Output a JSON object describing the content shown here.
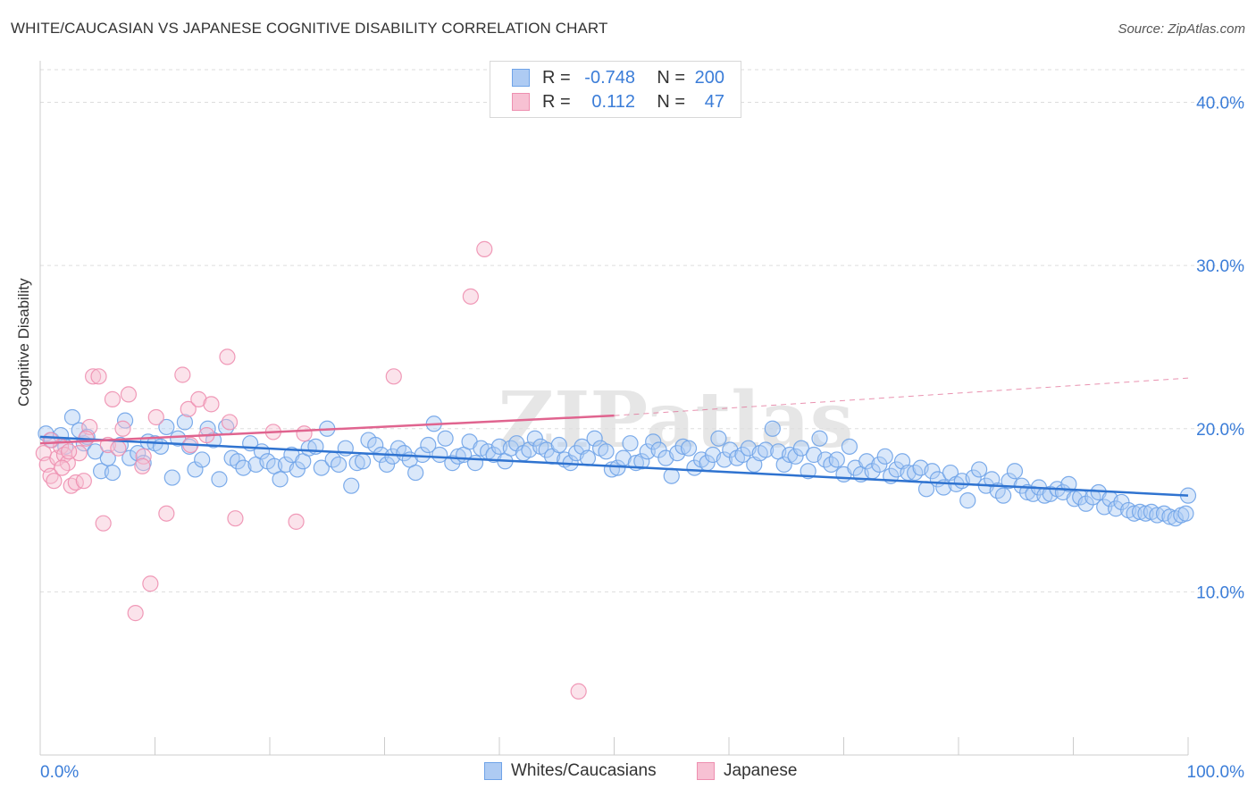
{
  "title": "WHITE/CAUCASIAN VS JAPANESE COGNITIVE DISABILITY CORRELATION CHART",
  "source": "Source: ZipAtlas.com",
  "watermark": "ZIPatlas",
  "colors": {
    "blue": "#6fa3e8",
    "blue_fill": "#aecbf3",
    "blue_line": "#2f73d0",
    "pink": "#ee8fb0",
    "pink_fill": "#f7c1d3",
    "pink_line": "#e0648f",
    "tick_text": "#3b7dd8",
    "grid": "#dddddd"
  },
  "legend": {
    "rows": [
      {
        "r_label": "R =",
        "r_value": "-0.748",
        "n_label": "N =",
        "n_value": "200"
      },
      {
        "r_label": "R =",
        "r_value": "0.112",
        "n_label": "N =",
        "n_value": "47"
      }
    ]
  },
  "bottom_legend": [
    {
      "label": "Whites/Caucasians"
    },
    {
      "label": "Japanese"
    }
  ],
  "chart_data": {
    "type": "scatter",
    "title": "WHITE/CAUCASIAN VS JAPANESE COGNITIVE DISABILITY CORRELATION CHART",
    "xlabel": "",
    "ylabel": "Cognitive Disability",
    "xlim": [
      0,
      100
    ],
    "ylim": [
      0,
      42
    ],
    "x_tick_labels": [
      "0.0%",
      "100.0%"
    ],
    "y_ticks": [
      10,
      20,
      30,
      40
    ],
    "y_tick_labels": [
      "10.0%",
      "20.0%",
      "30.0%",
      "40.0%"
    ],
    "grid": "horizontal dashed",
    "legend_position": "top-center",
    "series": [
      {
        "name": "Whites/Caucasians",
        "color": "#6fa3e8",
        "trend": {
          "x": [
            0,
            100
          ],
          "y": [
            19.5,
            15.9
          ]
        },
        "points": [
          [
            0.5,
            19.7
          ],
          [
            1.0,
            19.3
          ],
          [
            1.8,
            19.6
          ],
          [
            2.2,
            18.9
          ],
          [
            2.8,
            20.7
          ],
          [
            3.4,
            19.9
          ],
          [
            3.8,
            19.1
          ],
          [
            4.1,
            19.5
          ],
          [
            4.8,
            18.6
          ],
          [
            5.3,
            17.4
          ],
          [
            5.9,
            18.2
          ],
          [
            6.3,
            17.3
          ],
          [
            7.0,
            19.0
          ],
          [
            7.4,
            20.5
          ],
          [
            7.8,
            18.2
          ],
          [
            8.5,
            18.5
          ],
          [
            9.0,
            17.9
          ],
          [
            9.4,
            19.2
          ],
          [
            10.0,
            19.1
          ],
          [
            10.5,
            18.9
          ],
          [
            11.0,
            20.1
          ],
          [
            11.5,
            17.0
          ],
          [
            12.0,
            19.4
          ],
          [
            12.6,
            20.4
          ],
          [
            13.0,
            18.9
          ],
          [
            13.5,
            17.5
          ],
          [
            14.1,
            18.1
          ],
          [
            14.6,
            20.0
          ],
          [
            15.1,
            19.3
          ],
          [
            15.6,
            16.9
          ],
          [
            16.2,
            20.1
          ],
          [
            16.7,
            18.2
          ],
          [
            17.2,
            18.0
          ],
          [
            17.7,
            17.6
          ],
          [
            18.3,
            19.1
          ],
          [
            18.8,
            17.8
          ],
          [
            19.3,
            18.6
          ],
          [
            19.8,
            18.0
          ],
          [
            20.4,
            17.7
          ],
          [
            20.9,
            16.9
          ],
          [
            21.4,
            17.8
          ],
          [
            21.9,
            18.4
          ],
          [
            22.4,
            17.5
          ],
          [
            22.9,
            18.0
          ],
          [
            23.4,
            18.8
          ],
          [
            24.0,
            18.9
          ],
          [
            24.5,
            17.6
          ],
          [
            25.0,
            20.0
          ],
          [
            25.5,
            18.1
          ],
          [
            26.0,
            17.8
          ],
          [
            26.6,
            18.8
          ],
          [
            27.1,
            16.5
          ],
          [
            27.6,
            17.9
          ],
          [
            28.1,
            18.0
          ],
          [
            28.6,
            19.3
          ],
          [
            29.2,
            19.0
          ],
          [
            29.7,
            18.4
          ],
          [
            30.2,
            17.8
          ],
          [
            30.7,
            18.3
          ],
          [
            31.2,
            18.8
          ],
          [
            31.7,
            18.5
          ],
          [
            32.2,
            18.1
          ],
          [
            32.7,
            17.3
          ],
          [
            33.3,
            18.4
          ],
          [
            33.8,
            19.0
          ],
          [
            34.3,
            20.3
          ],
          [
            34.8,
            18.4
          ],
          [
            35.3,
            19.4
          ],
          [
            35.9,
            17.9
          ],
          [
            36.4,
            18.3
          ],
          [
            36.9,
            18.4
          ],
          [
            37.4,
            19.2
          ],
          [
            37.9,
            17.9
          ],
          [
            38.4,
            18.8
          ],
          [
            39.0,
            18.6
          ],
          [
            39.5,
            18.4
          ],
          [
            40.0,
            18.9
          ],
          [
            40.5,
            18.0
          ],
          [
            41.0,
            18.8
          ],
          [
            41.5,
            19.1
          ],
          [
            42.1,
            18.5
          ],
          [
            42.6,
            18.7
          ],
          [
            43.1,
            19.4
          ],
          [
            43.6,
            18.9
          ],
          [
            44.1,
            18.7
          ],
          [
            44.6,
            18.3
          ],
          [
            45.2,
            19.0
          ],
          [
            45.7,
            18.1
          ],
          [
            46.2,
            17.9
          ],
          [
            46.7,
            18.5
          ],
          [
            47.2,
            18.9
          ],
          [
            47.7,
            18.2
          ],
          [
            48.3,
            19.4
          ],
          [
            48.8,
            18.8
          ],
          [
            49.3,
            18.6
          ],
          [
            49.8,
            17.5
          ],
          [
            50.3,
            17.6
          ],
          [
            50.8,
            18.2
          ],
          [
            51.4,
            19.1
          ],
          [
            51.9,
            17.9
          ],
          [
            52.4,
            18.0
          ],
          [
            52.9,
            18.6
          ],
          [
            53.4,
            19.2
          ],
          [
            53.9,
            18.7
          ],
          [
            54.5,
            18.2
          ],
          [
            55.0,
            17.1
          ],
          [
            55.5,
            18.5
          ],
          [
            56.0,
            18.9
          ],
          [
            56.5,
            18.8
          ],
          [
            57.0,
            17.6
          ],
          [
            57.6,
            18.1
          ],
          [
            58.1,
            17.9
          ],
          [
            58.6,
            18.4
          ],
          [
            59.1,
            19.4
          ],
          [
            59.6,
            18.1
          ],
          [
            60.1,
            18.7
          ],
          [
            60.7,
            18.2
          ],
          [
            61.2,
            18.4
          ],
          [
            61.7,
            18.8
          ],
          [
            62.2,
            17.8
          ],
          [
            62.7,
            18.5
          ],
          [
            63.2,
            18.7
          ],
          [
            63.8,
            20.0
          ],
          [
            64.3,
            18.6
          ],
          [
            64.8,
            17.8
          ],
          [
            65.3,
            18.4
          ],
          [
            65.8,
            18.3
          ],
          [
            66.3,
            18.8
          ],
          [
            66.9,
            17.4
          ],
          [
            67.4,
            18.4
          ],
          [
            67.9,
            19.4
          ],
          [
            68.4,
            18.1
          ],
          [
            68.9,
            17.8
          ],
          [
            69.4,
            18.1
          ],
          [
            70.0,
            17.2
          ],
          [
            70.5,
            18.9
          ],
          [
            71.0,
            17.6
          ],
          [
            71.5,
            17.2
          ],
          [
            72.0,
            18.0
          ],
          [
            72.5,
            17.4
          ],
          [
            73.1,
            17.8
          ],
          [
            73.6,
            18.3
          ],
          [
            74.1,
            17.1
          ],
          [
            74.6,
            17.5
          ],
          [
            75.1,
            18.0
          ],
          [
            75.6,
            17.3
          ],
          [
            76.2,
            17.3
          ],
          [
            76.7,
            17.6
          ],
          [
            77.2,
            16.3
          ],
          [
            77.7,
            17.4
          ],
          [
            78.2,
            16.9
          ],
          [
            78.7,
            16.4
          ],
          [
            79.3,
            17.3
          ],
          [
            79.8,
            16.6
          ],
          [
            80.3,
            16.8
          ],
          [
            80.8,
            15.6
          ],
          [
            81.3,
            17.0
          ],
          [
            81.8,
            17.5
          ],
          [
            82.4,
            16.5
          ],
          [
            82.9,
            16.9
          ],
          [
            83.4,
            16.2
          ],
          [
            83.9,
            15.9
          ],
          [
            84.4,
            16.8
          ],
          [
            84.9,
            17.4
          ],
          [
            85.5,
            16.5
          ],
          [
            86.0,
            16.1
          ],
          [
            86.5,
            16.0
          ],
          [
            87.0,
            16.4
          ],
          [
            87.5,
            15.9
          ],
          [
            88.0,
            16.0
          ],
          [
            88.6,
            16.3
          ],
          [
            89.1,
            16.1
          ],
          [
            89.6,
            16.6
          ],
          [
            90.1,
            15.7
          ],
          [
            90.6,
            15.8
          ],
          [
            91.1,
            15.4
          ],
          [
            91.7,
            15.8
          ],
          [
            92.2,
            16.1
          ],
          [
            92.7,
            15.2
          ],
          [
            93.2,
            15.7
          ],
          [
            93.7,
            15.1
          ],
          [
            94.2,
            15.5
          ],
          [
            94.8,
            15.0
          ],
          [
            95.3,
            14.8
          ],
          [
            95.8,
            14.9
          ],
          [
            96.3,
            14.8
          ],
          [
            96.8,
            14.9
          ],
          [
            97.3,
            14.7
          ],
          [
            97.9,
            14.8
          ],
          [
            98.4,
            14.6
          ],
          [
            98.9,
            14.5
          ],
          [
            99.4,
            14.7
          ],
          [
            99.8,
            14.8
          ],
          [
            100.0,
            15.9
          ]
        ]
      },
      {
        "name": "Japanese",
        "color": "#ee8fb0",
        "trend": {
          "x": [
            0,
            50
          ],
          "y": [
            19.1,
            20.8
          ]
        },
        "trend_extension": {
          "x": [
            50,
            100
          ],
          "y": [
            20.8,
            23.1
          ]
        },
        "points": [
          [
            0.3,
            18.5
          ],
          [
            0.6,
            17.8
          ],
          [
            0.9,
            17.1
          ],
          [
            1.2,
            16.8
          ],
          [
            1.5,
            18.2
          ],
          [
            1.8,
            18.9
          ],
          [
            2.1,
            18.4
          ],
          [
            2.4,
            17.9
          ],
          [
            2.7,
            16.5
          ],
          [
            3.1,
            16.7
          ],
          [
            3.4,
            18.5
          ],
          [
            3.8,
            16.8
          ],
          [
            4.3,
            20.1
          ],
          [
            4.6,
            23.2
          ],
          [
            5.1,
            23.2
          ],
          [
            5.5,
            14.2
          ],
          [
            5.9,
            19.0
          ],
          [
            6.3,
            21.8
          ],
          [
            6.8,
            18.8
          ],
          [
            7.2,
            20.0
          ],
          [
            7.7,
            22.1
          ],
          [
            8.3,
            8.7
          ],
          [
            9.0,
            18.3
          ],
          [
            9.6,
            10.5
          ],
          [
            10.1,
            20.7
          ],
          [
            11.0,
            14.8
          ],
          [
            12.4,
            23.3
          ],
          [
            12.9,
            21.2
          ],
          [
            13.8,
            21.8
          ],
          [
            14.5,
            19.6
          ],
          [
            14.9,
            21.5
          ],
          [
            16.3,
            24.4
          ],
          [
            16.5,
            20.4
          ],
          [
            17.0,
            14.5
          ],
          [
            20.3,
            19.8
          ],
          [
            22.3,
            14.3
          ],
          [
            23.0,
            19.7
          ],
          [
            30.8,
            23.2
          ],
          [
            37.5,
            28.1
          ],
          [
            38.7,
            31.0
          ],
          [
            46.9,
            3.9
          ],
          [
            0.9,
            19.3
          ],
          [
            1.9,
            17.6
          ],
          [
            2.5,
            18.6
          ],
          [
            4.0,
            19.4
          ],
          [
            8.9,
            17.7
          ],
          [
            13.1,
            19.0
          ]
        ]
      }
    ]
  }
}
